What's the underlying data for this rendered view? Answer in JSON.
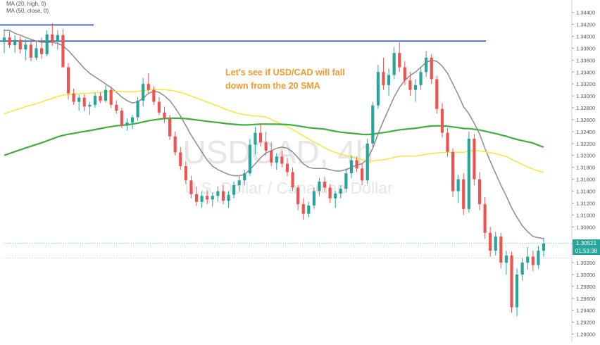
{
  "chart_data": {
    "type": "candlestick",
    "symbol_watermark": "USDCAD, 4h",
    "subtitle_watermark": "U.S. Dollar / Canadian Dollar",
    "annotation": [
      "Let's see if USD/CAD will fall",
      "down from the 20 SMA"
    ],
    "legend": [
      "MA (20, high, 0)",
      "MA (50, close, 0)"
    ],
    "y_axis": {
      "side": "right",
      "min": 1.289,
      "max": 1.3455,
      "ticks": [
        "1.34400",
        "1.34200",
        "1.34000",
        "1.33800",
        "1.33600",
        "1.33400",
        "1.33200",
        "1.33000",
        "1.32800",
        "1.32600",
        "1.32400",
        "1.32200",
        "1.32000",
        "1.31800",
        "1.31600",
        "1.31400",
        "1.31200",
        "1.31000",
        "1.30800",
        "1.30521",
        "1.30200",
        "1.30000",
        "1.29800",
        "1.29600",
        "1.29400",
        "1.29200",
        "1.29000"
      ]
    },
    "last_price": "1.30521",
    "countdown": "01:53:38",
    "resistance_levels": [
      1.3419,
      1.3392
    ],
    "colors": {
      "up": "#26a69a",
      "down": "#ef5350",
      "ma20": "#8c8c8c",
      "ma50": "#f5e63a",
      "ma100": "#3fae3f",
      "resistance": "#1f4ba8",
      "annotation": "#f39a2b",
      "price_tag": "#26a69a"
    },
    "candles_ohlc": [
      [
        1.339,
        1.3412,
        1.3372,
        1.3398
      ],
      [
        1.3398,
        1.3408,
        1.338,
        1.3385
      ],
      [
        1.3385,
        1.3402,
        1.3372,
        1.3394
      ],
      [
        1.3394,
        1.34,
        1.3371,
        1.3378
      ],
      [
        1.3378,
        1.3395,
        1.336,
        1.3386
      ],
      [
        1.3386,
        1.3394,
        1.3358,
        1.3364
      ],
      [
        1.3364,
        1.3392,
        1.336,
        1.338
      ],
      [
        1.338,
        1.3398,
        1.3362,
        1.337
      ],
      [
        1.337,
        1.341,
        1.3366,
        1.3403
      ],
      [
        1.3403,
        1.3422,
        1.3384,
        1.3392
      ],
      [
        1.3392,
        1.341,
        1.3378,
        1.3402
      ],
      [
        1.3402,
        1.3412,
        1.335,
        1.3348
      ],
      [
        1.3348,
        1.3355,
        1.3294,
        1.3304
      ],
      [
        1.3304,
        1.3312,
        1.3285,
        1.329
      ],
      [
        1.329,
        1.3302,
        1.3275,
        1.3297
      ],
      [
        1.3297,
        1.3303,
        1.3274,
        1.3282
      ],
      [
        1.3282,
        1.329,
        1.3268,
        1.3285
      ],
      [
        1.3285,
        1.3305,
        1.328,
        1.33
      ],
      [
        1.33,
        1.3306,
        1.3288,
        1.3292
      ],
      [
        1.3292,
        1.3318,
        1.3289,
        1.331
      ],
      [
        1.331,
        1.3316,
        1.328,
        1.3285
      ],
      [
        1.3285,
        1.3292,
        1.327,
        1.3275
      ],
      [
        1.3275,
        1.328,
        1.3246,
        1.325
      ],
      [
        1.325,
        1.3262,
        1.3242,
        1.3255
      ],
      [
        1.3255,
        1.3268,
        1.3244,
        1.3264
      ],
      [
        1.3264,
        1.3298,
        1.3258,
        1.3292
      ],
      [
        1.3292,
        1.333,
        1.3282,
        1.332
      ],
      [
        1.332,
        1.3338,
        1.3305,
        1.331
      ],
      [
        1.331,
        1.3316,
        1.3285,
        1.329
      ],
      [
        1.329,
        1.3298,
        1.3268,
        1.3272
      ],
      [
        1.3272,
        1.3282,
        1.3255,
        1.3262
      ],
      [
        1.3262,
        1.3268,
        1.3226,
        1.3232
      ],
      [
        1.3232,
        1.324,
        1.32,
        1.3205
      ],
      [
        1.3205,
        1.3214,
        1.3176,
        1.3182
      ],
      [
        1.3182,
        1.319,
        1.3152,
        1.3158
      ],
      [
        1.3158,
        1.3166,
        1.3128,
        1.3135
      ],
      [
        1.3135,
        1.3148,
        1.3115,
        1.3122
      ],
      [
        1.3122,
        1.314,
        1.3112,
        1.3132
      ],
      [
        1.3132,
        1.3142,
        1.3118,
        1.3126
      ],
      [
        1.3126,
        1.3138,
        1.3114,
        1.3132
      ],
      [
        1.3132,
        1.3148,
        1.3122,
        1.314
      ],
      [
        1.314,
        1.315,
        1.3118,
        1.3124
      ],
      [
        1.3124,
        1.314,
        1.3112,
        1.3134
      ],
      [
        1.3134,
        1.3156,
        1.3128,
        1.315
      ],
      [
        1.315,
        1.3165,
        1.314,
        1.3158
      ],
      [
        1.3158,
        1.3176,
        1.315,
        1.317
      ],
      [
        1.317,
        1.3228,
        1.3166,
        1.3218
      ],
      [
        1.3218,
        1.3248,
        1.3202,
        1.3238
      ],
      [
        1.3238,
        1.3254,
        1.3215,
        1.3222
      ],
      [
        1.3222,
        1.324,
        1.32,
        1.3208
      ],
      [
        1.3208,
        1.3222,
        1.3182,
        1.3188
      ],
      [
        1.3188,
        1.3204,
        1.3176,
        1.3198
      ],
      [
        1.3198,
        1.3208,
        1.318,
        1.3186
      ],
      [
        1.3186,
        1.3196,
        1.3165,
        1.3172
      ],
      [
        1.3172,
        1.318,
        1.314,
        1.3146
      ],
      [
        1.3146,
        1.315,
        1.3108,
        1.3118
      ],
      [
        1.3118,
        1.3128,
        1.3092,
        1.3102
      ],
      [
        1.3102,
        1.3122,
        1.3096,
        1.3116
      ],
      [
        1.3116,
        1.3146,
        1.311,
        1.314
      ],
      [
        1.314,
        1.3162,
        1.3132,
        1.3156
      ],
      [
        1.3156,
        1.3164,
        1.3138,
        1.3146
      ],
      [
        1.3146,
        1.3152,
        1.312,
        1.3128
      ],
      [
        1.3128,
        1.314,
        1.3112,
        1.3136
      ],
      [
        1.3136,
        1.315,
        1.3128,
        1.3144
      ],
      [
        1.3144,
        1.3178,
        1.3138,
        1.317
      ],
      [
        1.317,
        1.32,
        1.3162,
        1.3192
      ],
      [
        1.3192,
        1.3198,
        1.3172,
        1.3178
      ],
      [
        1.3178,
        1.3186,
        1.315,
        1.3158
      ],
      [
        1.3158,
        1.3228,
        1.3152,
        1.322
      ],
      [
        1.322,
        1.329,
        1.3214,
        1.3284
      ],
      [
        1.3284,
        1.3352,
        1.3278,
        1.334
      ],
      [
        1.334,
        1.3364,
        1.331,
        1.3318
      ],
      [
        1.3318,
        1.3346,
        1.33,
        1.3335
      ],
      [
        1.3335,
        1.3382,
        1.3328,
        1.3372
      ],
      [
        1.3372,
        1.339,
        1.334,
        1.3348
      ],
      [
        1.3348,
        1.3358,
        1.3318,
        1.3326
      ],
      [
        1.3326,
        1.334,
        1.33,
        1.331
      ],
      [
        1.331,
        1.3328,
        1.329,
        1.3318
      ],
      [
        1.3318,
        1.3348,
        1.331,
        1.334
      ],
      [
        1.334,
        1.3375,
        1.3332,
        1.3364
      ],
      [
        1.3364,
        1.337,
        1.332,
        1.3328
      ],
      [
        1.3328,
        1.3334,
        1.327,
        1.3278
      ],
      [
        1.3278,
        1.3288,
        1.323,
        1.3238
      ],
      [
        1.3238,
        1.3246,
        1.3198,
        1.3206
      ],
      [
        1.3206,
        1.3212,
        1.313,
        1.314
      ],
      [
        1.314,
        1.3168,
        1.312,
        1.316
      ],
      [
        1.316,
        1.317,
        1.31,
        1.311
      ],
      [
        1.311,
        1.324,
        1.3104,
        1.3228
      ],
      [
        1.3228,
        1.3236,
        1.315,
        1.316
      ],
      [
        1.316,
        1.3172,
        1.3108,
        1.3118
      ],
      [
        1.3118,
        1.313,
        1.306,
        1.307
      ],
      [
        1.307,
        1.308,
        1.303,
        1.304
      ],
      [
        1.304,
        1.3072,
        1.3032,
        1.3064
      ],
      [
        1.3064,
        1.307,
        1.301,
        1.302
      ],
      [
        1.302,
        1.304,
        1.3,
        1.3032
      ],
      [
        1.3032,
        1.3038,
        1.2936,
        1.2945
      ],
      [
        1.2945,
        1.301,
        1.293,
        1.3
      ],
      [
        1.3,
        1.3028,
        1.299,
        1.302
      ],
      [
        1.302,
        1.3046,
        1.3008,
        1.303
      ],
      [
        1.303,
        1.304,
        1.3006,
        1.3016
      ],
      [
        1.3016,
        1.3048,
        1.301,
        1.304
      ],
      [
        1.304,
        1.3062,
        1.303,
        1.3052
      ]
    ],
    "ma20_high": [
      1.341,
      1.341,
      1.3405,
      1.3402,
      1.3398,
      1.3395,
      1.3392,
      1.339,
      1.339,
      1.339,
      1.3388,
      1.3384,
      1.3376,
      1.3366,
      1.3356,
      1.3346,
      1.3338,
      1.3332,
      1.3326,
      1.332,
      1.3314,
      1.3306,
      1.3298,
      1.3292,
      1.3288,
      1.329,
      1.3296,
      1.3304,
      1.3308,
      1.3306,
      1.33,
      1.3292,
      1.328,
      1.3266,
      1.325,
      1.3234,
      1.322,
      1.3206,
      1.3192,
      1.3182,
      1.3176,
      1.3172,
      1.3168,
      1.3166,
      1.3166,
      1.3168,
      1.3176,
      1.3186,
      1.3196,
      1.3204,
      1.3208,
      1.3212,
      1.3214,
      1.3212,
      1.3206,
      1.3196,
      1.3186,
      1.318,
      1.3178,
      1.3178,
      1.3178,
      1.3176,
      1.3174,
      1.3174,
      1.3176,
      1.318,
      1.3184,
      1.3186,
      1.3194,
      1.3212,
      1.3236,
      1.3258,
      1.3278,
      1.3298,
      1.3314,
      1.3326,
      1.3334,
      1.334,
      1.3348,
      1.3356,
      1.336,
      1.3358,
      1.335,
      1.3338,
      1.332,
      1.3302,
      1.3282,
      1.327,
      1.3254,
      1.3236,
      1.3212,
      1.319,
      1.317,
      1.315,
      1.3132,
      1.3112,
      1.3096,
      1.3082,
      1.3072,
      1.3064,
      1.3062,
      1.306
    ]
  }
}
